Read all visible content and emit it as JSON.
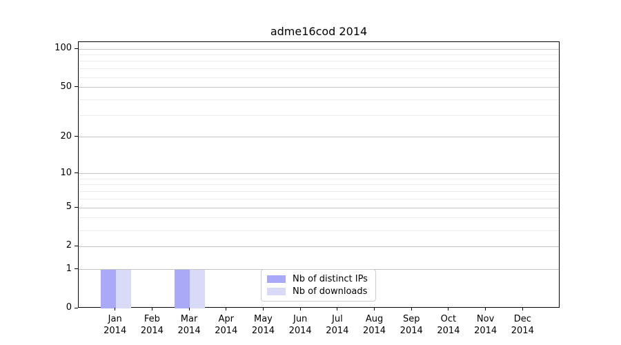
{
  "title": "adme16cod 2014",
  "chart_data": {
    "type": "bar",
    "title": "adme16cod 2014",
    "categories": [
      "Jan 2014",
      "Feb 2014",
      "Mar 2014",
      "Apr 2014",
      "May 2014",
      "Jun 2014",
      "Jul 2014",
      "Aug 2014",
      "Sep 2014",
      "Oct 2014",
      "Nov 2014",
      "Dec 2014"
    ],
    "series": [
      {
        "name": "Nb of distinct IPs",
        "color": "#a9a9f7",
        "values": [
          1,
          0,
          1,
          0,
          0,
          0,
          0,
          0,
          0,
          0,
          0,
          0
        ]
      },
      {
        "name": "Nb of downloads",
        "color": "#d9d9f8",
        "values": [
          1,
          0,
          1,
          0,
          0,
          0,
          0,
          0,
          0,
          0,
          0,
          0
        ]
      }
    ],
    "xlabel": "",
    "ylabel": "",
    "y_scale": "log1p",
    "y_major_ticks": [
      0,
      1,
      2,
      5,
      10,
      20,
      50,
      100
    ],
    "y_minor_ticks": [
      3,
      4,
      6,
      7,
      8,
      9,
      30,
      40,
      60,
      70,
      80,
      90
    ],
    "ylim": [
      0,
      113.2
    ],
    "grid": "horizontal",
    "legend_position": "inside-bottom-center"
  },
  "colors": {
    "major_grid": "#c3c3c3",
    "minor_grid": "#ececec",
    "spine": "#000000",
    "legend_border": "#cccccc",
    "background": "#ffffff"
  }
}
